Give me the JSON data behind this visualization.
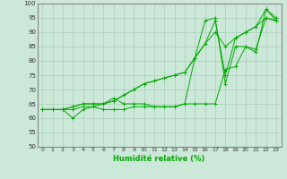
{
  "xlabel": "Humidité relative (%)",
  "ylabel": "",
  "background_color": "#cce8d8",
  "grid_color": "#aaccbb",
  "line_color": "#00aa00",
  "xlim": [
    -0.5,
    23.5
  ],
  "ylim": [
    50,
    100
  ],
  "xticks": [
    0,
    1,
    2,
    3,
    4,
    5,
    6,
    7,
    8,
    9,
    10,
    11,
    12,
    13,
    14,
    15,
    16,
    17,
    18,
    19,
    20,
    21,
    22,
    23
  ],
  "yticks": [
    50,
    55,
    60,
    65,
    70,
    75,
    80,
    85,
    90,
    95,
    100
  ],
  "series": [
    [
      63,
      63,
      63,
      63,
      64,
      64,
      63,
      63,
      63,
      64,
      64,
      64,
      64,
      64,
      65,
      65,
      65,
      65,
      77,
      78,
      85,
      84,
      95,
      94
    ],
    [
      63,
      63,
      63,
      60,
      63,
      64,
      65,
      67,
      65,
      65,
      65,
      64,
      64,
      64,
      65,
      81,
      94,
      95,
      72,
      85,
      85,
      83,
      98,
      95
    ],
    [
      63,
      63,
      63,
      64,
      65,
      65,
      65,
      66,
      68,
      70,
      72,
      73,
      74,
      75,
      76,
      81,
      86,
      90,
      85,
      88,
      90,
      92,
      95,
      94
    ],
    [
      63,
      63,
      63,
      64,
      65,
      65,
      65,
      66,
      68,
      70,
      72,
      73,
      74,
      75,
      76,
      81,
      86,
      94,
      75,
      88,
      90,
      92,
      98,
      94
    ]
  ]
}
